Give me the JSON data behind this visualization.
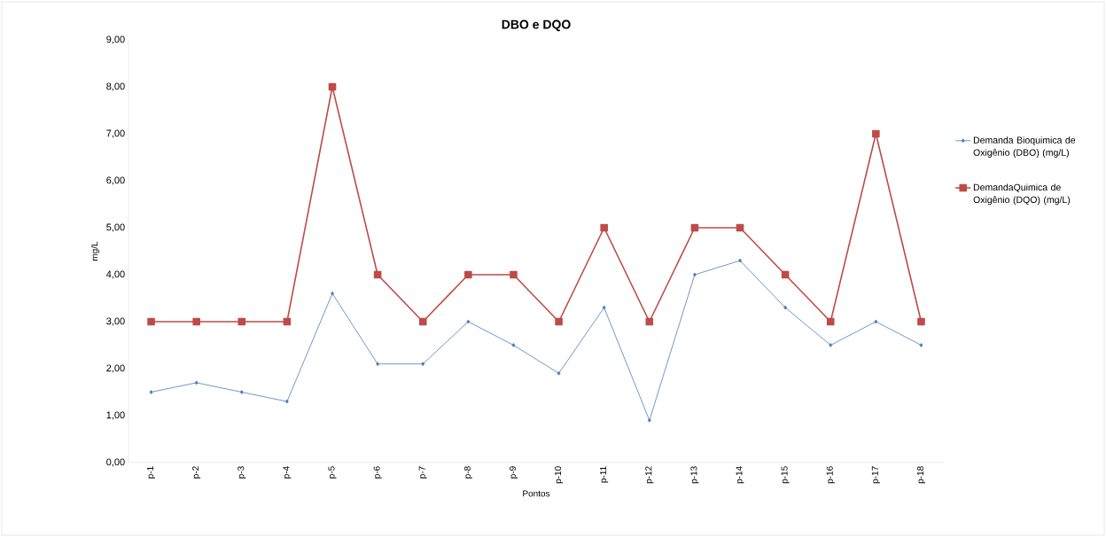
{
  "chart_data": {
    "type": "line",
    "title": "DBO e DQO",
    "xlabel": "Pontos",
    "ylabel": "mg/L",
    "categories": [
      "p-1",
      "p-2",
      "p-3",
      "p-4",
      "p-5",
      "p-6",
      "p-7",
      "p-8",
      "p-9",
      "p-10",
      "p-11",
      "p-12",
      "p-13",
      "p-14",
      "p-15",
      "p-16",
      "p-17",
      "p-18"
    ],
    "series": [
      {
        "name": "Demanda Bioquimica de Oxigênio (DBO) (mg/L)",
        "color": "#4a7ebb",
        "marker": "diamond",
        "values": [
          1.5,
          1.7,
          1.5,
          1.3,
          3.6,
          2.1,
          2.1,
          3.0,
          2.5,
          1.9,
          3.3,
          0.9,
          4.0,
          4.3,
          3.3,
          2.5,
          3.0,
          2.5
        ]
      },
      {
        "name": "DemandaQuimica de Oxigênio (DQO) (mg/L)",
        "color": "#be4b48",
        "marker": "square",
        "values": [
          3,
          3,
          3,
          3,
          8,
          4,
          3,
          4,
          4,
          3,
          5,
          3,
          5,
          5,
          4,
          3,
          7,
          3
        ]
      }
    ],
    "ylim": [
      0,
      9
    ],
    "yticks": [
      {
        "value": 0,
        "label": "0,00"
      },
      {
        "value": 1,
        "label": "1,00"
      },
      {
        "value": 2,
        "label": "2,00"
      },
      {
        "value": 3,
        "label": "3,00"
      },
      {
        "value": 4,
        "label": "4,00"
      },
      {
        "value": 5,
        "label": "5,00"
      },
      {
        "value": 6,
        "label": "6,00"
      },
      {
        "value": 7,
        "label": "7,00"
      },
      {
        "value": 8,
        "label": "8,00"
      },
      {
        "value": 9,
        "label": "9,00"
      }
    ],
    "grid": false,
    "legend": "right"
  }
}
